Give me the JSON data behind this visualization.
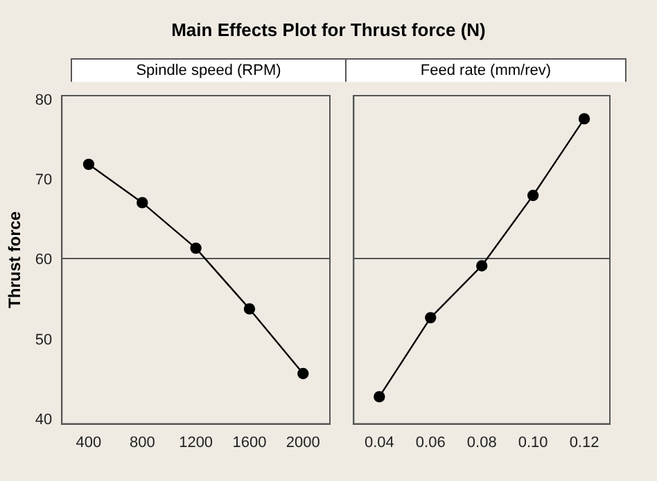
{
  "chart_data": [
    {
      "type": "line",
      "title": "Main Effects Plot for Thrust force (N)",
      "subtitle": "Spindle speed (RPM)",
      "ylabel": "Thrust force",
      "categories": [
        "400",
        "800",
        "1200",
        "1600",
        "2000"
      ],
      "series": [
        {
          "color": "#000000",
          "values": [
            72.0,
            67.2,
            61.5,
            53.9,
            45.8
          ]
        }
      ],
      "ylim": [
        39.5,
        80.6
      ],
      "yticks": [
        40,
        50,
        60,
        70,
        80
      ],
      "marker": "circle",
      "ref_lines": [
        {
          "axis": "y",
          "value": 60.2,
          "color": "#555555"
        }
      ]
    },
    {
      "type": "line",
      "subtitle": "Feed rate (mm/rev)",
      "categories": [
        "0.04",
        "0.06",
        "0.08",
        "0.10",
        "0.12"
      ],
      "series": [
        {
          "color": "#000000",
          "values": [
            42.9,
            52.8,
            59.3,
            68.1,
            77.7
          ]
        }
      ],
      "ylim": [
        39.5,
        80.6
      ],
      "yticks": [
        40,
        50,
        60,
        70,
        80
      ],
      "tick_labels": "x",
      "marker": "circle",
      "ref_lines": [
        {
          "axis": "y",
          "value": 60.2,
          "color": "#555555"
        }
      ]
    }
  ]
}
